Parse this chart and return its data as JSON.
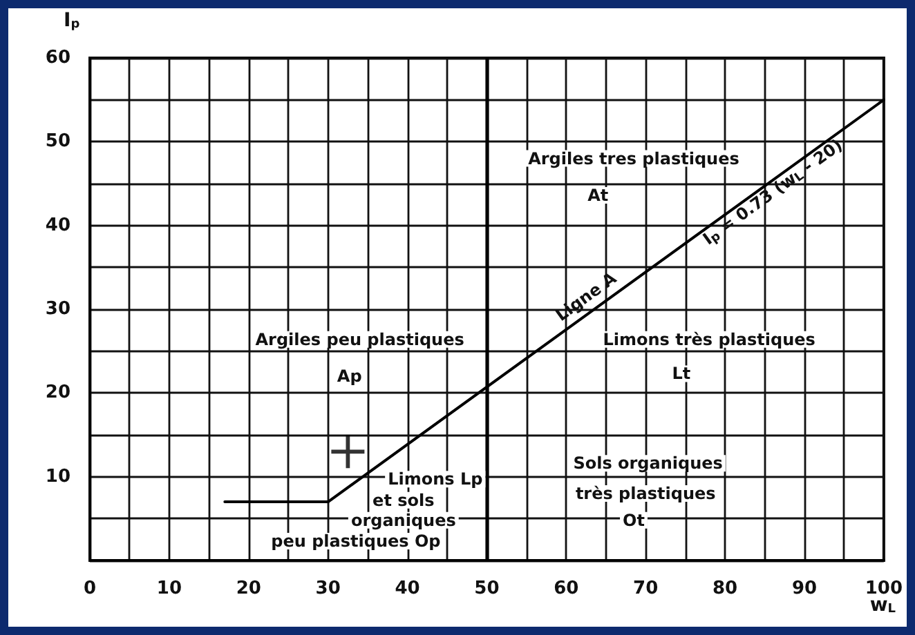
{
  "chart_data": {
    "type": "line",
    "xlabel": "w$_{L}$",
    "ylabel": "I$_{p}$",
    "series": [
      {
        "color": "#000000",
        "x": [
          30,
          100
        ],
        "values": [
          7,
          55
        ]
      },
      {
        "color": "#000000",
        "x": [
          17,
          30
        ],
        "values": [
          7,
          7
        ]
      },
      {
        "type": "scatter",
        "color": "#000000",
        "marker": "cross",
        "x": [
          32.5
        ],
        "values": [
          13
        ]
      }
    ],
    "ref_lines": [
      {
        "axis": "x",
        "value": 50,
        "color": "#000000"
      }
    ],
    "xlim": [
      0,
      100
    ],
    "ylim": [
      0,
      60
    ],
    "xticks": [
      0,
      {
        "value": 5,
        "label": null
      },
      10,
      {
        "value": 15,
        "label": null
      },
      20,
      {
        "value": 25,
        "label": null
      },
      30,
      {
        "value": 35,
        "label": null
      },
      40,
      {
        "value": 45,
        "label": null
      },
      50,
      {
        "value": 55,
        "label": null
      },
      60,
      {
        "value": 65,
        "label": null
      },
      70,
      {
        "value": 75,
        "label": null
      },
      80,
      {
        "value": 85,
        "label": null
      },
      90,
      {
        "value": 95,
        "label": null
      },
      100
    ],
    "yticks": [
      {
        "value": 0,
        "label": null
      },
      {
        "value": 5,
        "label": null
      },
      10,
      {
        "value": 15,
        "label": null
      },
      20,
      {
        "value": 25,
        "label": null
      },
      30,
      {
        "value": 35,
        "label": null
      },
      40,
      {
        "value": 45,
        "label": null
      },
      50,
      {
        "value": 55,
        "label": null
      },
      60
    ],
    "grid": true,
    "marker": "none",
    "line_style": "solid",
    "annotations": [
      "Argiles tres plastiques",
      "At",
      "Ligne A",
      "I$_{p}$ = 0.73 (w$_{L}$ - 20)",
      "Argiles peu plastiques",
      "Ap",
      "Limons très plastiques",
      "Lt",
      "Limons Lp",
      "et sols",
      "organiques",
      "peu plastiques Op",
      "Sols organiques",
      "très plastiques",
      "Ot"
    ]
  }
}
